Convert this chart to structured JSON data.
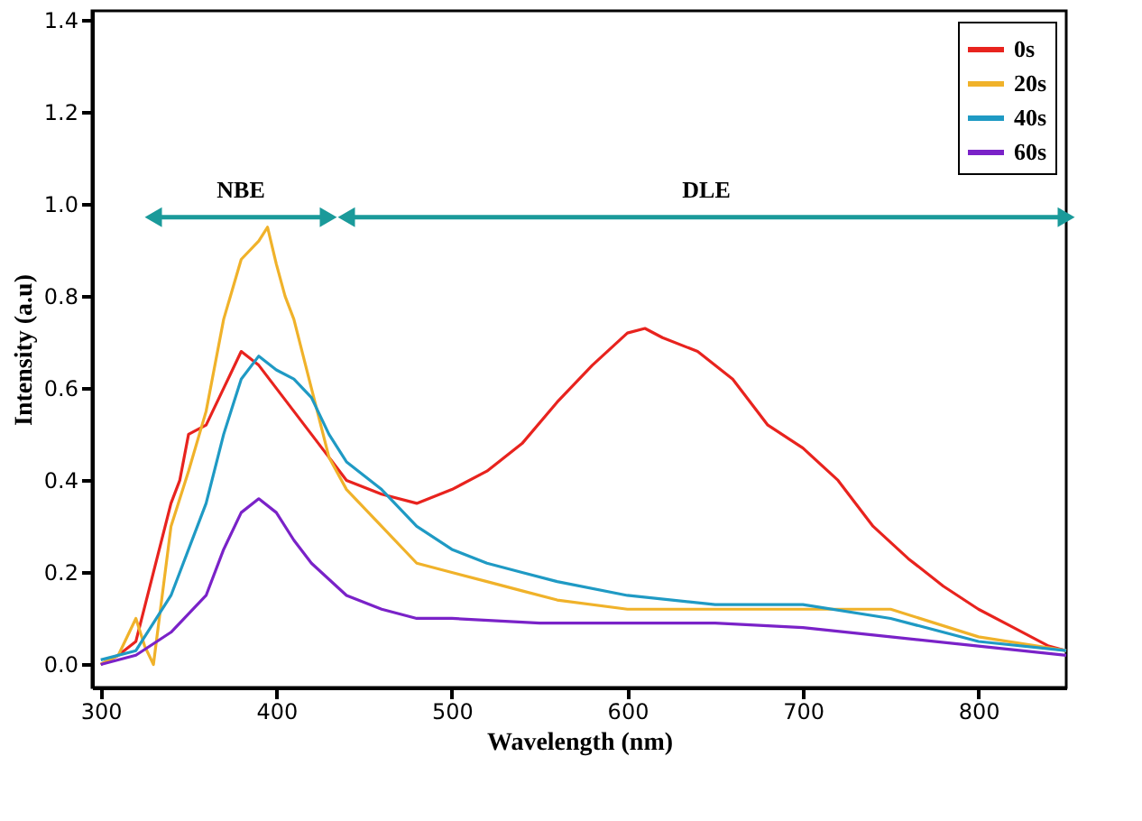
{
  "chart_data": {
    "type": "line",
    "xlabel": "Wavelength (nm)",
    "ylabel": "Intensity (a.u)",
    "xlim": [
      295,
      850
    ],
    "xticks": [
      300,
      400,
      500,
      600,
      700,
      800
    ],
    "ylim": [
      -0.05,
      1.42
    ],
    "yticks": [
      {
        "value": 0,
        "label": "0.0"
      },
      0.2,
      0.4,
      0.6,
      0.8,
      {
        "value": 1,
        "label": "1.0"
      },
      1.2,
      1.4
    ],
    "grid": false,
    "legend": "top right",
    "line_style": "solid",
    "marker": "none",
    "annotations": [
      "NBE",
      "DLE"
    ],
    "series": [
      {
        "name": "0s",
        "color": "#e8231e",
        "x": [
          300,
          310,
          320,
          330,
          340,
          345,
          350,
          360,
          370,
          380,
          390,
          400,
          410,
          420,
          430,
          440,
          460,
          480,
          500,
          520,
          540,
          560,
          580,
          600,
          610,
          620,
          640,
          660,
          680,
          700,
          720,
          740,
          760,
          780,
          800,
          820,
          840,
          850
        ],
        "values": [
          0.0,
          0.02,
          0.05,
          0.2,
          0.35,
          0.4,
          0.5,
          0.52,
          0.6,
          0.68,
          0.65,
          0.6,
          0.55,
          0.5,
          0.45,
          0.4,
          0.37,
          0.35,
          0.38,
          0.42,
          0.48,
          0.57,
          0.65,
          0.72,
          0.73,
          0.71,
          0.68,
          0.62,
          0.52,
          0.47,
          0.4,
          0.3,
          0.23,
          0.17,
          0.12,
          0.08,
          0.04,
          0.03
        ]
      },
      {
        "name": "20s",
        "color": "#f0b22a",
        "x": [
          300,
          310,
          320,
          325,
          330,
          340,
          350,
          360,
          370,
          380,
          390,
          395,
          400,
          405,
          410,
          420,
          430,
          440,
          460,
          480,
          500,
          520,
          540,
          560,
          600,
          650,
          700,
          750,
          800,
          850
        ],
        "values": [
          0.0,
          0.02,
          0.1,
          0.04,
          0.0,
          0.3,
          0.42,
          0.55,
          0.75,
          0.88,
          0.92,
          0.95,
          0.87,
          0.8,
          0.75,
          0.6,
          0.45,
          0.38,
          0.3,
          0.22,
          0.2,
          0.18,
          0.16,
          0.14,
          0.12,
          0.12,
          0.12,
          0.12,
          0.06,
          0.03
        ]
      },
      {
        "name": "40s",
        "color": "#1f9ac4",
        "x": [
          300,
          320,
          340,
          360,
          370,
          380,
          390,
          400,
          410,
          420,
          430,
          440,
          460,
          480,
          500,
          520,
          540,
          560,
          600,
          650,
          700,
          750,
          800,
          850
        ],
        "values": [
          0.01,
          0.03,
          0.15,
          0.35,
          0.5,
          0.62,
          0.67,
          0.64,
          0.62,
          0.58,
          0.5,
          0.44,
          0.38,
          0.3,
          0.25,
          0.22,
          0.2,
          0.18,
          0.15,
          0.13,
          0.13,
          0.1,
          0.05,
          0.03
        ]
      },
      {
        "name": "60s",
        "color": "#7a22c8",
        "x": [
          300,
          320,
          340,
          360,
          370,
          380,
          390,
          400,
          410,
          420,
          440,
          460,
          480,
          500,
          550,
          600,
          650,
          700,
          750,
          800,
          850
        ],
        "values": [
          0.0,
          0.02,
          0.07,
          0.15,
          0.25,
          0.33,
          0.36,
          0.33,
          0.27,
          0.22,
          0.15,
          0.12,
          0.1,
          0.1,
          0.09,
          0.09,
          0.09,
          0.08,
          0.06,
          0.04,
          0.02
        ]
      }
    ]
  }
}
